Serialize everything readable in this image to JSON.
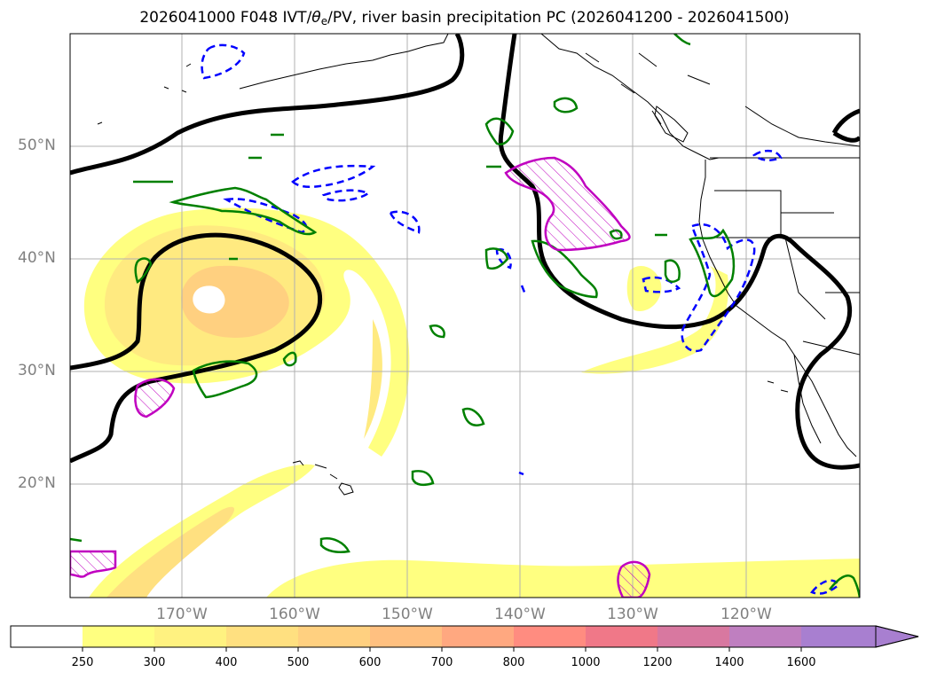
{
  "title": {
    "prefix": "2026041000 F048 IVT/",
    "theta": "θ",
    "theta_sub": "e",
    "suffix": "/PV, river basin precipitation PC (2026041200 - 2026041500)"
  },
  "map": {
    "lat_labels": [
      "50°N",
      "40°N",
      "30°N",
      "20°N"
    ],
    "lon_labels": [
      "170°W",
      "160°W",
      "150°W",
      "140°W",
      "130°W",
      "120°W"
    ],
    "grid_lat": [
      50,
      40,
      30,
      20
    ],
    "grid_lon": [
      -170,
      -160,
      -150,
      -140,
      -130,
      -120
    ],
    "extent": {
      "lon_min": -180,
      "lon_max": -110,
      "lat_min": 10,
      "lat_max": 60
    },
    "contour_colors": {
      "pv": "#000000",
      "theta_e": "#0000ff",
      "precip_pc": "#008000",
      "precip_pc_hatched": "#c000c0"
    }
  },
  "colorbar": {
    "levels": [
      "250",
      "300",
      "400",
      "500",
      "600",
      "700",
      "800",
      "1000",
      "1200",
      "1400",
      "1600"
    ],
    "colors": [
      "#ffffff",
      "#ffff80",
      "#fff280",
      "#ffe080",
      "#ffd080",
      "#ffc080",
      "#ffa880",
      "#ff8c80",
      "#f07888",
      "#d878a0",
      "#bf7fc0",
      "#a87fd0"
    ],
    "extend": "max"
  }
}
